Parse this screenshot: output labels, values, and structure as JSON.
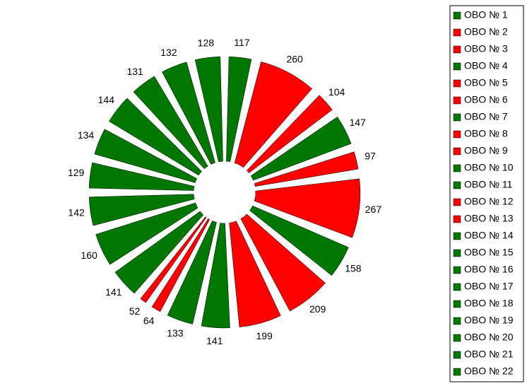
{
  "chart_data": {
    "type": "pie",
    "categories": [
      "OBO № 1",
      "OBO № 2",
      "OBO № 3",
      "OBO № 4",
      "OBO № 5",
      "OBO № 6",
      "OBO № 7",
      "OBO № 8",
      "OBO № 9",
      "OBO № 10",
      "OBO № 11",
      "OBO № 12",
      "OBO № 13",
      "OBO № 14",
      "OBO № 15",
      "OBO № 16",
      "OBO № 17",
      "OBO № 18",
      "OBO № 19",
      "OBO № 20",
      "OBO № 21",
      "OBO № 22"
    ],
    "values": [
      117,
      260,
      104,
      147,
      97,
      267,
      158,
      209,
      199,
      141,
      133,
      64,
      52,
      141,
      160,
      142,
      129,
      134,
      144,
      131,
      132,
      128
    ],
    "colors": [
      "#007700",
      "#ff0000",
      "#ff0000",
      "#007700",
      "#ff0000",
      "#ff0000",
      "#007700",
      "#ff0000",
      "#ff0000",
      "#007700",
      "#007700",
      "#ff0000",
      "#ff0000",
      "#007700",
      "#007700",
      "#007700",
      "#007700",
      "#007700",
      "#007700",
      "#007700",
      "#007700",
      "#007700"
    ],
    "legend": "right"
  }
}
